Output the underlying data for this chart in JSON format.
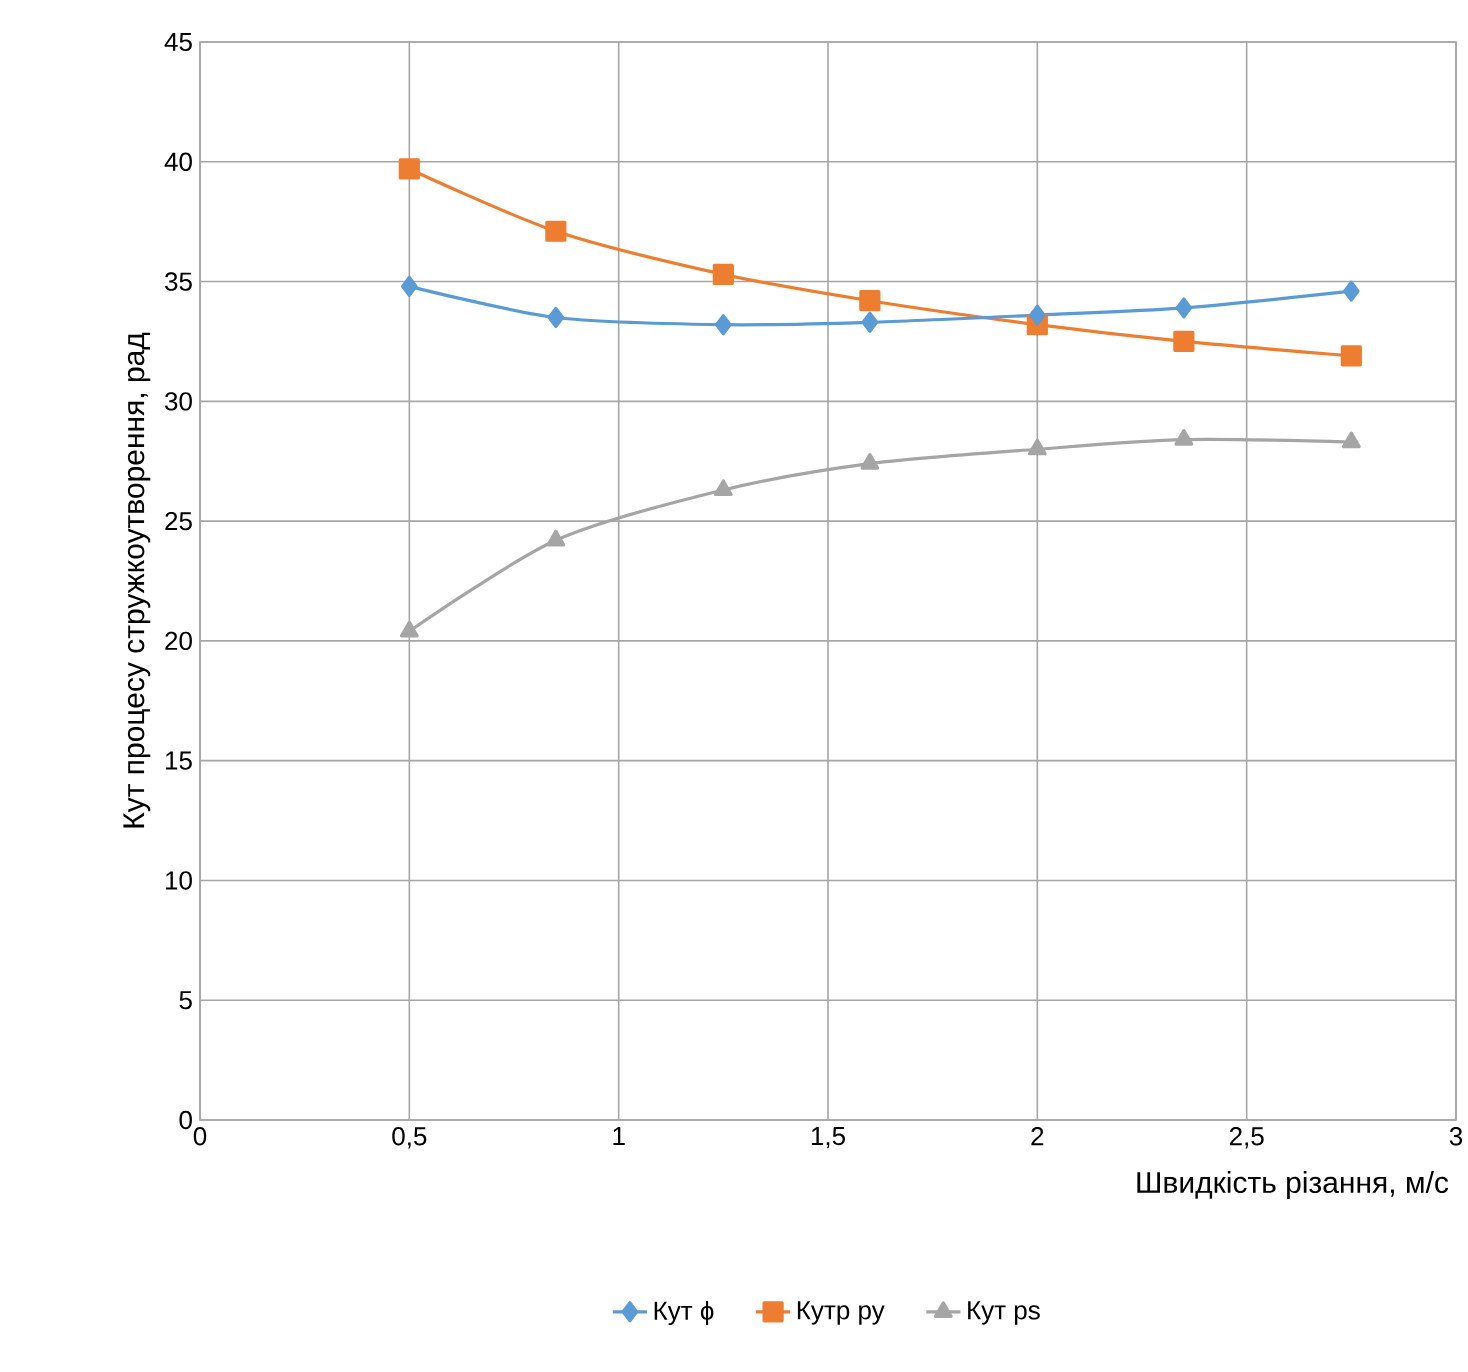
{
  "chart_data": {
    "type": "line",
    "xlabel": "Швидкість різання, м/с",
    "ylabel": "Кут процесу стружкоутворення, рад",
    "x": [
      0.5,
      0.85,
      1.25,
      1.6,
      2.0,
      2.35,
      2.75
    ],
    "series": [
      {
        "name": "Кут ϕ",
        "color": "#5b9bd5",
        "marker": "diamond",
        "values": [
          34.8,
          33.5,
          33.2,
          33.3,
          33.6,
          33.9,
          34.6
        ]
      },
      {
        "name": "Кутр ру",
        "color": "#ed7d31",
        "marker": "square",
        "values": [
          39.7,
          37.1,
          35.3,
          34.2,
          33.2,
          32.5,
          31.9
        ]
      },
      {
        "name": "Кут ps",
        "color": "#a5a5a5",
        "marker": "triangle",
        "values": [
          20.4,
          24.2,
          26.3,
          27.4,
          28.0,
          28.4,
          28.3
        ]
      }
    ],
    "xlim": [
      0,
      3
    ],
    "ylim": [
      0,
      45
    ],
    "xticks": [
      0,
      {
        "value": 0.5,
        "label": "0,5"
      },
      1,
      {
        "value": 1.5,
        "label": "1,5"
      },
      2,
      {
        "value": 2.5,
        "label": "2,5"
      },
      3
    ],
    "yticks": [
      0,
      5,
      10,
      15,
      20,
      25,
      30,
      35,
      40,
      45
    ],
    "grid": true,
    "legend": "bottom"
  }
}
